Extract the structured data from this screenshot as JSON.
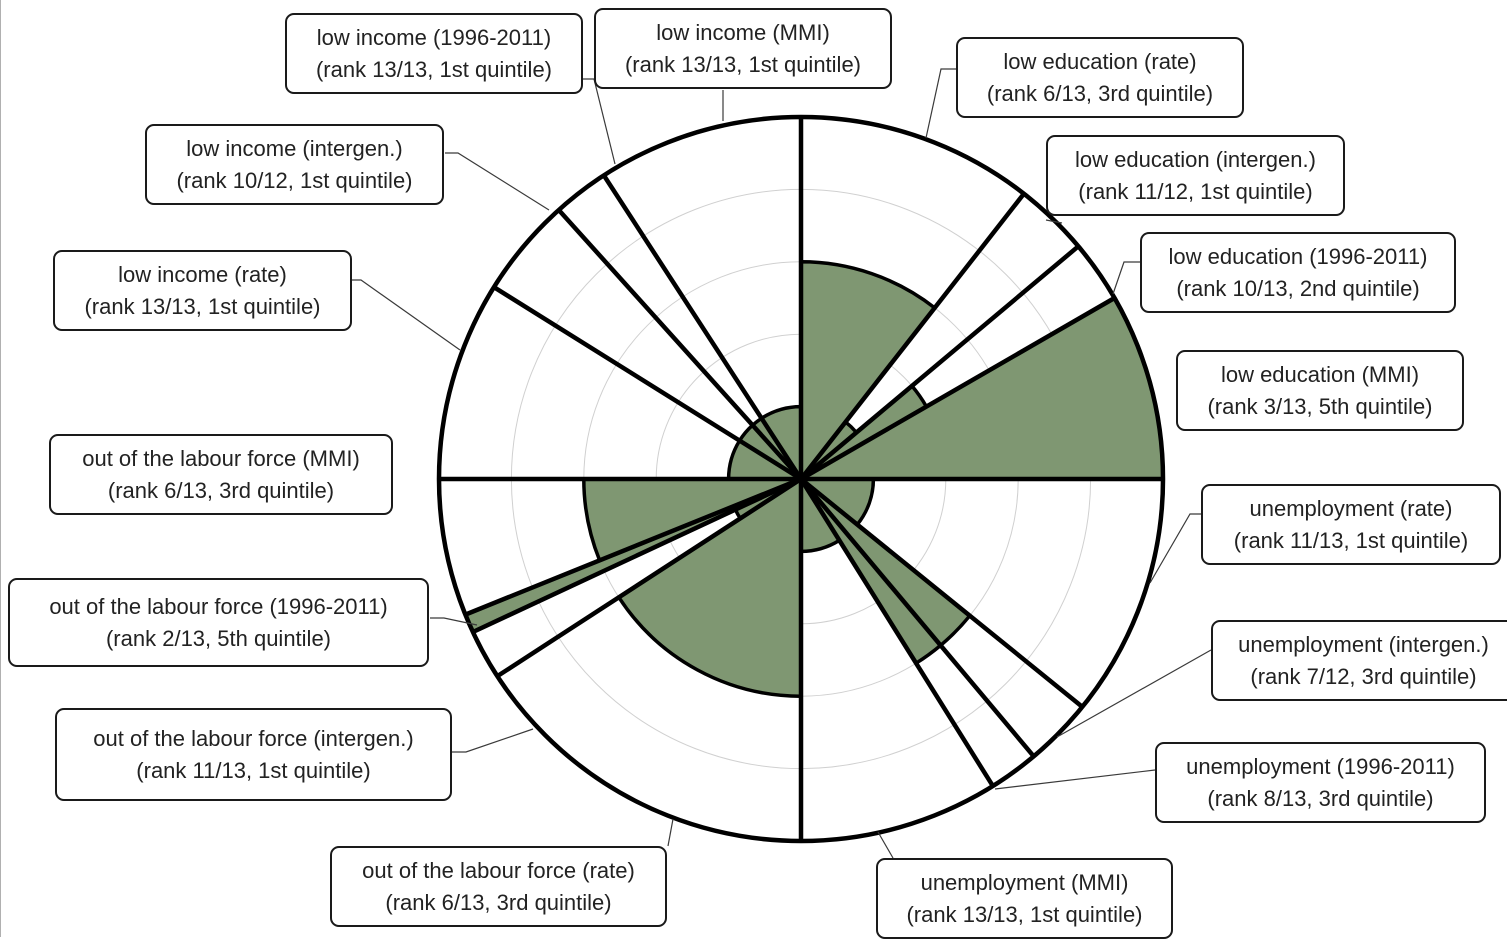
{
  "chart_data": {
    "type": "polar-area",
    "rings": 5,
    "max_value": 5,
    "colors": {
      "fill": "#7f9772",
      "stroke": "#000000",
      "grid": "#d0d0d0"
    },
    "sectors": [
      {
        "title": "low education (rate)",
        "detail": "(rank 6/13, 3rd quintile)",
        "value": 3
      },
      {
        "title": "low education (intergen.)",
        "detail": "(rank 11/12, 1st quintile)",
        "value": 1
      },
      {
        "title": "low education (1996-2011)",
        "detail": "(rank 10/13, 2nd quintile)",
        "value": 2
      },
      {
        "title": "low education (MMI)",
        "detail": "(rank 3/13, 5th quintile)",
        "value": 5
      },
      {
        "title": "unemployment (rate)",
        "detail": "(rank 11/13, 1st quintile)",
        "value": 1
      },
      {
        "title": "unemployment (intergen.)",
        "detail": "(rank 7/12, 3rd quintile)",
        "value": 3
      },
      {
        "title": "unemployment (1996-2011)",
        "detail": "(rank 8/13, 3rd quintile)",
        "value": 3
      },
      {
        "title": "unemployment (MMI)",
        "detail": "(rank 13/13, 1st quintile)",
        "value": 1
      },
      {
        "title": "out of the labour force (rate)",
        "detail": "(rank 6/13, 3rd quintile)",
        "value": 3
      },
      {
        "title": "out of the labour force (intergen.)",
        "detail": "(rank 11/13, 1st quintile)",
        "value": 1
      },
      {
        "title": "out of the labour force (1996-2011)",
        "detail": "(rank 2/13, 5th quintile)",
        "value": 5
      },
      {
        "title": "out of the labour force (MMI)",
        "detail": "(rank 6/13, 3rd quintile)",
        "value": 3
      },
      {
        "title": "low income (rate)",
        "detail": "(rank 13/13, 1st quintile)",
        "value": 1
      },
      {
        "title": "low income (intergen.)",
        "detail": "(rank 10/12, 1st quintile)",
        "value": 1
      },
      {
        "title": "low income (1996-2011)",
        "detail": "(rank 13/13, 1st quintile)",
        "value": 1
      },
      {
        "title": "low income (MMI)",
        "detail": "(rank 13/13, 1st quintile)",
        "value": 1
      }
    ]
  }
}
